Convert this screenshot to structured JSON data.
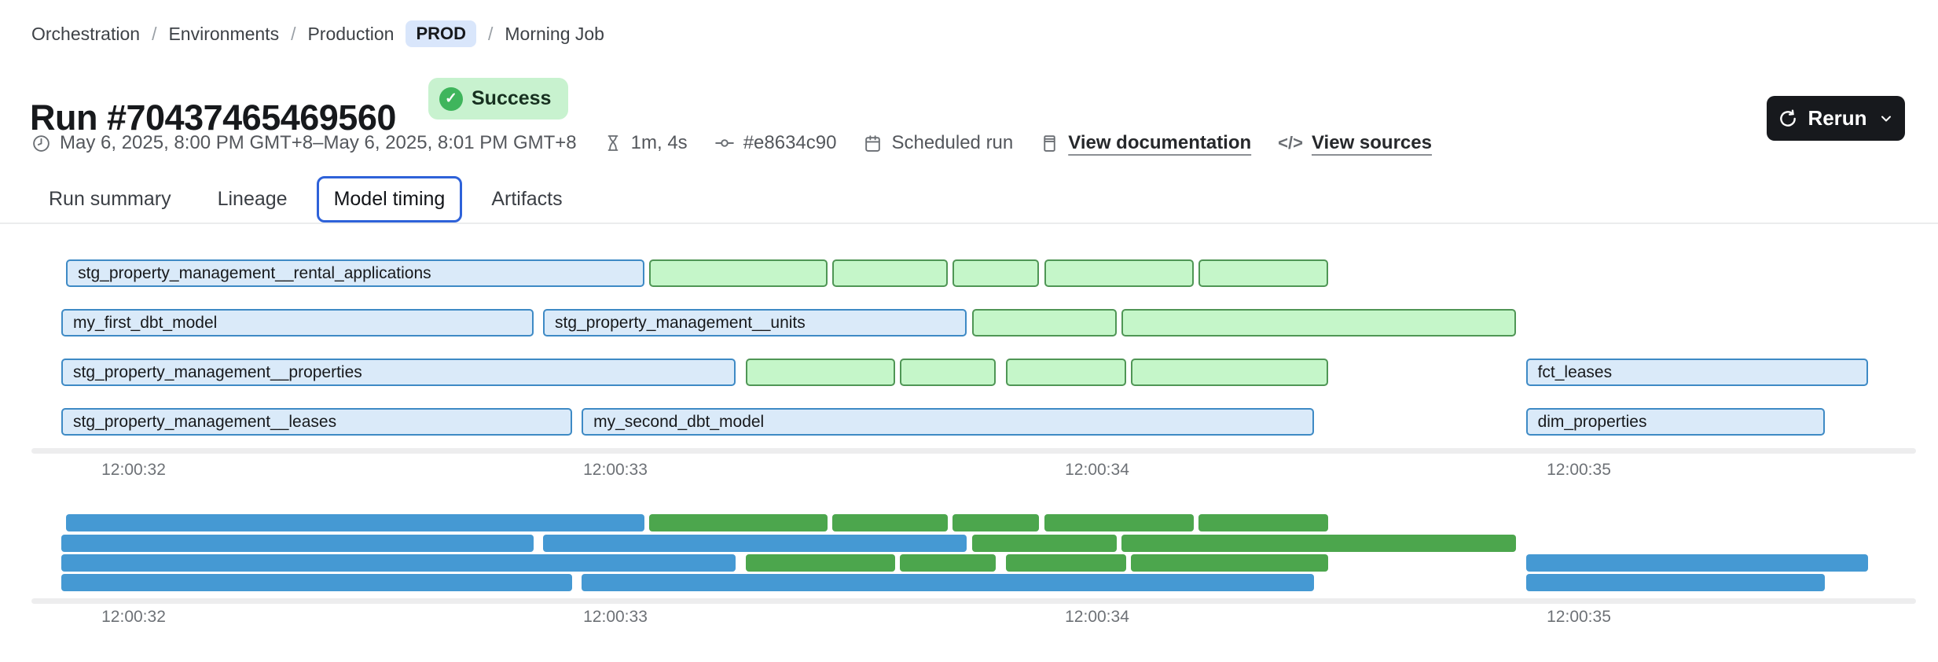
{
  "breadcrumb": {
    "items": [
      "Orchestration",
      "Environments",
      "Production",
      "Morning Job"
    ],
    "env_badge": "PROD"
  },
  "header": {
    "title": "Run #70437465469560",
    "status": "Success",
    "check_glyph": "✓",
    "rerun_label": "Rerun"
  },
  "meta": {
    "time_range": "May 6, 2025, 8:00 PM GMT+8–May 6, 2025, 8:01 PM GMT+8",
    "duration": "1m, 4s",
    "commit": "#e8634c90",
    "trigger": "Scheduled run",
    "doc_link": "View documentation",
    "sources_link": "View sources",
    "code_glyph": "</>"
  },
  "tabs": [
    {
      "label": "Run summary",
      "active": false
    },
    {
      "label": "Lineage",
      "active": false
    },
    {
      "label": "Model timing",
      "active": true
    },
    {
      "label": "Artifacts",
      "active": false
    }
  ],
  "colors": {
    "model_fill": "#daeaf9",
    "model_border": "#3e8ac5",
    "task_fill": "#c5f6c9",
    "task_border": "#4f9655",
    "mini_model": "#4599d3",
    "mini_task": "#4ca64d",
    "active_tab_border": "#2e62d9",
    "status_bg": "#c8f2cf",
    "status_check": "#3fb55c",
    "env_pill_bg": "#d9e6fb",
    "rerun_bg": "#17191d"
  },
  "chart_data": {
    "type": "gantt",
    "title": "Model timing",
    "x_ticks": [
      "12:00:32",
      "12:00:33",
      "12:00:34",
      "12:00:35"
    ],
    "tick_seconds": [
      32,
      33,
      34,
      35
    ],
    "time_unit": "seconds since 12:00:00",
    "rows": [
      [
        {
          "label": "stg_property_management__rental_applications",
          "kind": "model",
          "start": 31.86,
          "end": 33.06
        },
        {
          "label": "",
          "kind": "task",
          "start": 33.07,
          "end": 33.44
        },
        {
          "label": "",
          "kind": "task",
          "start": 33.45,
          "end": 33.69
        },
        {
          "label": "",
          "kind": "task",
          "start": 33.7,
          "end": 33.88
        },
        {
          "label": "",
          "kind": "task",
          "start": 33.89,
          "end": 34.2
        },
        {
          "label": "",
          "kind": "task",
          "start": 34.21,
          "end": 34.48
        }
      ],
      [
        {
          "label": "my_first_dbt_model",
          "kind": "model",
          "start": 31.85,
          "end": 32.83
        },
        {
          "label": "stg_property_management__units",
          "kind": "model",
          "start": 32.85,
          "end": 33.73
        },
        {
          "label": "",
          "kind": "task",
          "start": 33.74,
          "end": 34.04
        },
        {
          "label": "",
          "kind": "task",
          "start": 34.05,
          "end": 34.87
        }
      ],
      [
        {
          "label": "stg_property_management__properties",
          "kind": "model",
          "start": 31.85,
          "end": 33.25
        },
        {
          "label": "",
          "kind": "task",
          "start": 33.27,
          "end": 33.58
        },
        {
          "label": "",
          "kind": "task",
          "start": 33.59,
          "end": 33.79
        },
        {
          "label": "",
          "kind": "task",
          "start": 33.81,
          "end": 34.06
        },
        {
          "label": "",
          "kind": "task",
          "start": 34.07,
          "end": 34.48
        },
        {
          "label": "fct_leases",
          "kind": "model",
          "start": 34.89,
          "end": 35.6
        }
      ],
      [
        {
          "label": "stg_property_management__leases",
          "kind": "model",
          "start": 31.85,
          "end": 32.91
        },
        {
          "label": "my_second_dbt_model",
          "kind": "model",
          "start": 32.93,
          "end": 34.45
        },
        {
          "label": "dim_properties",
          "kind": "model",
          "start": 34.89,
          "end": 35.51
        }
      ]
    ]
  }
}
